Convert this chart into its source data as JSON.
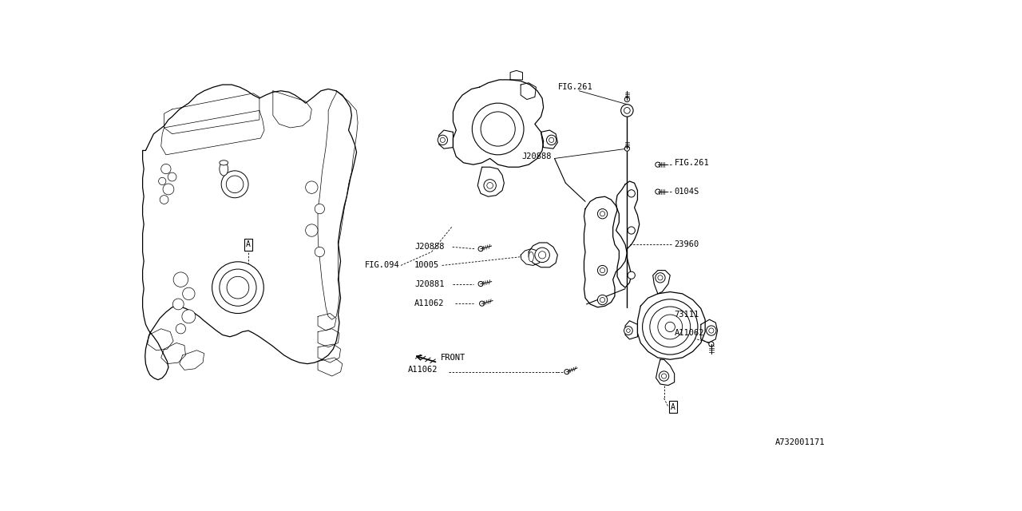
{
  "bg_color": "#ffffff",
  "lc": "#000000",
  "fig_id": "A732001171",
  "labels": {
    "FIG094": [
      385,
      332,
      "FIG.094"
    ],
    "FIG261_top": [
      703,
      42,
      "FIG.261"
    ],
    "J20888_top": [
      643,
      160,
      "J20888"
    ],
    "FIG261_r1": [
      893,
      170,
      "FIG.261"
    ],
    "O104S": [
      893,
      215,
      "0104S"
    ],
    "J20888_mid": [
      470,
      302,
      "J20888"
    ],
    "10005": [
      470,
      332,
      "10005"
    ],
    "J20881": [
      470,
      364,
      "J20881"
    ],
    "A11062_mid": [
      470,
      396,
      "A11062"
    ],
    "23960": [
      893,
      302,
      "23960"
    ],
    "73111": [
      893,
      412,
      "73111"
    ],
    "A11062_r": [
      893,
      442,
      "A11062"
    ],
    "A11062_bot": [
      460,
      502,
      "A11062"
    ],
    "FRONT": [
      502,
      482,
      "FRONT"
    ],
    "A_box_r": [
      883,
      562,
      "A"
    ],
    "A_box_l": [
      192,
      298,
      "A"
    ]
  }
}
